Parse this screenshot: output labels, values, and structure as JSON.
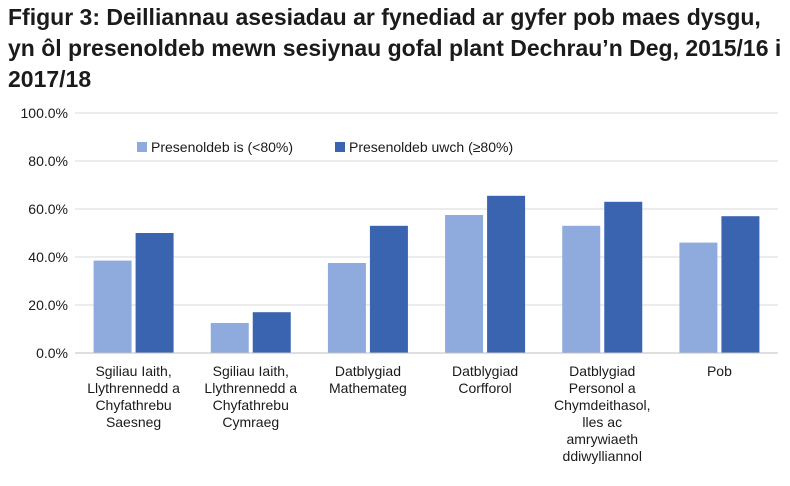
{
  "title": "Ffigur 3: Deilliannau asesiadau ar fynediad ar gyfer pob maes dysgu, yn ôl presenoldeb mewn sesiynau gofal plant Dechrau’n Deg, 2015/16 i 2017/18",
  "chart_data": {
    "type": "bar",
    "title": "Ffigur 3: Deilliannau asesiadau ar fynediad ar gyfer pob maes dysgu, yn ôl presenoldeb mewn sesiynau gofal plant Dechrau’n Deg, 2015/16 i 2017/18",
    "xlabel": "",
    "ylabel": "",
    "ylim": [
      0,
      100
    ],
    "yticks": [
      "0.0%",
      "20.0%",
      "40.0%",
      "60.0%",
      "80.0%",
      "100.0%"
    ],
    "grid": true,
    "legend_position": "top-center",
    "categories": [
      [
        "Sgiliau Iaith,",
        "Llythrennedd a",
        "Chyfathrebu",
        "Saesneg"
      ],
      [
        "Sgiliau Iaith,",
        "Llythrennedd a",
        "Chyfathrebu",
        "Cymraeg"
      ],
      [
        "Datblygiad",
        "Mathemateg"
      ],
      [
        "Datblygiad",
        "Corfforol"
      ],
      [
        "Datblygiad",
        "Personol a",
        "Chymdeithasol,",
        "lles ac",
        "amrywiaeth",
        "ddiwylliannol"
      ],
      [
        "Pob"
      ]
    ],
    "series": [
      {
        "name": "Presenoldeb is (<80%)",
        "color": "#8faadc",
        "values": [
          38.5,
          12.5,
          37.5,
          57.5,
          53.0,
          46.0
        ]
      },
      {
        "name": "Presenoldeb uwch (≥80%)",
        "color": "#3b64b0",
        "values": [
          50.0,
          17.0,
          53.0,
          65.5,
          63.0,
          57.0
        ]
      }
    ]
  }
}
